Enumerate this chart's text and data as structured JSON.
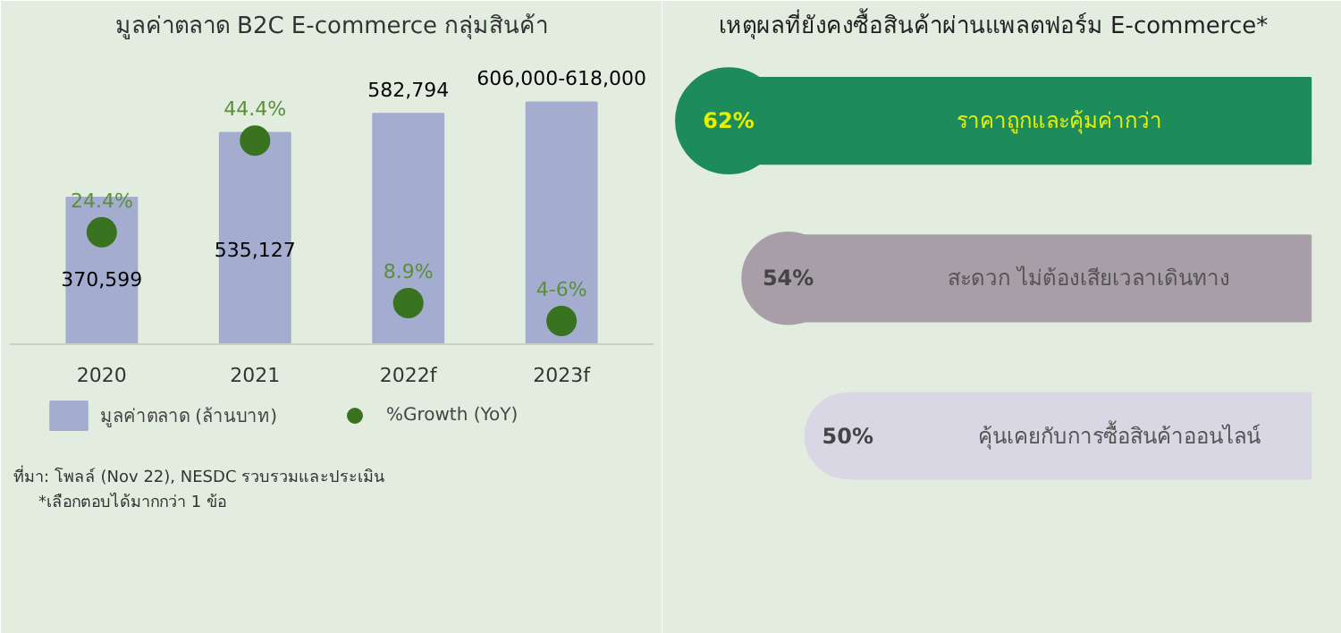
{
  "chart_data": [
    {
      "type": "bar",
      "title": "มูลค่าตลาด B2C E-commerce กลุ่มสินค้า",
      "categories": [
        "2020",
        "2021",
        "2022f",
        "2023f"
      ],
      "series": [
        {
          "name": "มูลค่าตลาด (ล้านบาท)",
          "type": "bar",
          "color": "#a4acd0",
          "values": [
            370599,
            535127,
            582794,
            612000
          ],
          "value_labels": [
            "370,599",
            "535,127",
            "582,794",
            "606,000-618,000"
          ]
        },
        {
          "name": "%Growth (YoY)",
          "type": "scatter",
          "axis": "y2",
          "color": "#3a7320",
          "values": [
            24.4,
            44.4,
            8.9,
            5
          ],
          "value_labels": [
            "24.4%",
            "44.4%",
            "8.9%",
            "4-6%"
          ]
        }
      ],
      "tick_labels": "x",
      "grid": false,
      "legend": "bottom",
      "marker": "circle",
      "annotations": [
        "ที่มา: โพลล์ (Nov 22), NESDC รวบรวมและประเมิน",
        "*เลือกตอบได้มากกว่า 1 ข้อ"
      ]
    },
    {
      "type": "other",
      "title": "เหตุผลที่ยังคงซื้อสินค้าผ่านแพลตฟอร์ม E-commerce*",
      "categories": [
        "ราคาถูกและคุ้มค่ากว่า",
        "สะดวก ไม่ต้องเสียเวลาเดินทาง",
        "คุ้นเคยกับการซื้อสินค้าออนไลน์"
      ],
      "values": [
        62,
        54,
        50
      ],
      "value_labels": [
        "62%",
        "54%",
        "50%"
      ],
      "colors": [
        "#1e8c5a",
        "#a89ea8",
        "#d9d7e4"
      ]
    }
  ]
}
